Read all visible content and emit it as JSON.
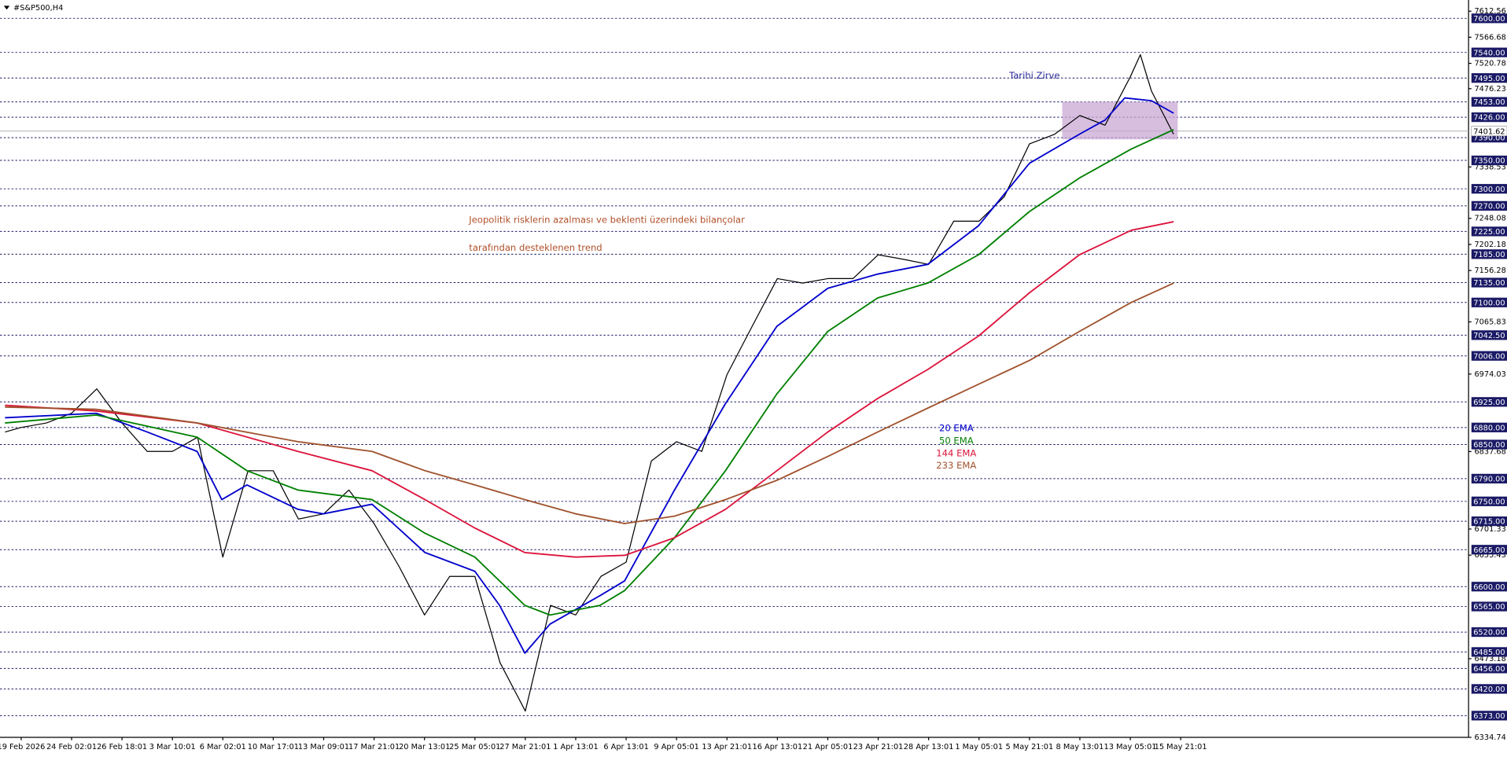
{
  "chart_data": {
    "type": "line",
    "title": "#S&P500,H4",
    "annotations": [
      "Tarihi Zirve",
      "Jeopolitik risklerin azalması ve beklenti üzerindeki bilançolar",
      "tarafından desteklenen trend"
    ],
    "xlim": [
      -0.42,
      28.71
    ],
    "xticks": [
      {
        "value": 0,
        "label": "19 Feb 2026"
      },
      {
        "value": 1,
        "label": "24 Feb 02:01"
      },
      {
        "value": 2,
        "label": "26 Feb 18:01"
      },
      {
        "value": 3,
        "label": "3 Mar 10:01"
      },
      {
        "value": 4,
        "label": "6 Mar 02:01"
      },
      {
        "value": 5,
        "label": "10 Mar 17:01"
      },
      {
        "value": 6,
        "label": "13 Mar 09:01"
      },
      {
        "value": 7,
        "label": "17 Mar 21:01"
      },
      {
        "value": 8,
        "label": "20 Mar 13:01"
      },
      {
        "value": 9,
        "label": "25 Mar 05:01"
      },
      {
        "value": 10,
        "label": "27 Mar 21:01"
      },
      {
        "value": 11,
        "label": "1 Apr 13:01"
      },
      {
        "value": 12,
        "label": "6 Apr 13:01"
      },
      {
        "value": 13,
        "label": "9 Apr 05:01"
      },
      {
        "value": 14,
        "label": "13 Apr 21:01"
      },
      {
        "value": 15,
        "label": "16 Apr 13:01"
      },
      {
        "value": 16,
        "label": "21 Apr 05:01"
      },
      {
        "value": 17,
        "label": "23 Apr 21:01"
      },
      {
        "value": 18,
        "label": "28 Apr 13:01"
      },
      {
        "value": 19,
        "label": "1 May 05:01"
      },
      {
        "value": 20,
        "label": "5 May 21:01"
      },
      {
        "value": 21,
        "label": "8 May 13:01"
      },
      {
        "value": 22,
        "label": "13 May 05:01"
      },
      {
        "value": 23,
        "label": "15 May 21:01"
      }
    ],
    "ylim": [
      6334.74,
      7612.56
    ],
    "yticks": [
      7612.56,
      7566.68,
      7520.78,
      7476.23,
      7338.53,
      7248.08,
      7202.18,
      7156.28,
      7065.83,
      6974.03,
      6837.68,
      6701.33,
      6655.43,
      6473.18,
      6334.74
    ],
    "levels": [
      {
        "value": 7600,
        "label": "7600.00"
      },
      {
        "value": 7540,
        "label": "7540.00"
      },
      {
        "value": 7495,
        "label": "7495.00"
      },
      {
        "value": 7453,
        "label": "7453.00"
      },
      {
        "value": 7426,
        "label": "7426.00"
      },
      {
        "value": 7390,
        "label": "7390.00"
      },
      {
        "value": 7350,
        "label": "7350.00"
      },
      {
        "value": 7300,
        "label": "7300.00"
      },
      {
        "value": 7270,
        "label": "7270.00"
      },
      {
        "value": 7225,
        "label": "7225.00"
      },
      {
        "value": 7185,
        "label": "7185.00"
      },
      {
        "value": 7135,
        "label": "7135.00"
      },
      {
        "value": 7100,
        "label": "7100.00"
      },
      {
        "value": 7042.5,
        "label": "7042.50"
      },
      {
        "value": 7006,
        "label": "7006.00"
      },
      {
        "value": 6925,
        "label": "6925.00"
      },
      {
        "value": 6880,
        "label": "6880.00"
      },
      {
        "value": 6850,
        "label": "6850.00"
      },
      {
        "value": 6790,
        "label": "6790.00"
      },
      {
        "value": 6750,
        "label": "6750.00"
      },
      {
        "value": 6715,
        "label": "6715.00"
      },
      {
        "value": 6665,
        "label": "6665.00"
      },
      {
        "value": 6600,
        "label": "6600.00"
      },
      {
        "value": 6565,
        "label": "6565.00"
      },
      {
        "value": 6520,
        "label": "6520.00"
      },
      {
        "value": 6485,
        "label": "6485.00"
      },
      {
        "value": 6456,
        "label": "6456.00"
      },
      {
        "value": 6420,
        "label": "6420.00"
      },
      {
        "value": 6373,
        "label": "6373.00"
      }
    ],
    "level_color": "#1a1a66",
    "current_price": 7401.62,
    "zone": {
      "x": [
        20.65,
        22.94
      ],
      "y": [
        7387,
        7453
      ],
      "color": "#c9a8d4"
    },
    "series": [
      {
        "color": "#000000",
        "x": [
          -0.32,
          0,
          0.5,
          1,
          1.5,
          2,
          2.5,
          3,
          3.5,
          4,
          4.5,
          5,
          5.5,
          6,
          6.5,
          7,
          7.5,
          8,
          8.5,
          9,
          9.5,
          10,
          10.5,
          11,
          11.5,
          12,
          12.5,
          13,
          13.5,
          14,
          14.5,
          15,
          15.5,
          16,
          16.5,
          17,
          17.5,
          18,
          18.5,
          19,
          19.5,
          20,
          20.5,
          21,
          21.5,
          22,
          22.2,
          22.42,
          22.86
        ],
        "values": [
          6872,
          6880,
          6888,
          6905,
          6948,
          6888,
          6838,
          6838,
          6863,
          6652,
          6804,
          6804,
          6719,
          6728,
          6770,
          6711,
          6635,
          6550,
          6618,
          6618,
          6466,
          6381,
          6567,
          6550,
          6618,
          6643,
          6821,
          6855,
          6838,
          6973,
          7058,
          7142,
          7134,
          7142,
          7142,
          7184,
          7176,
          7167,
          7243,
          7243,
          7286,
          7379,
          7396,
          7429,
          7412,
          7497,
          7536,
          7472,
          7396
        ]
      },
      {
        "name": "20 EMA",
        "color": "#0000cc",
        "x": [
          -0.32,
          1.49,
          2.5,
          3.49,
          3.98,
          4.48,
          5.49,
          5.99,
          6.96,
          8.01,
          9,
          9.49,
          9.99,
          10.49,
          11.48,
          11.97,
          12.96,
          13.97,
          14.99,
          16,
          16.99,
          17.98,
          18.99,
          20,
          20.99,
          21.5,
          21.89,
          22.42,
          22.86
        ],
        "values": [
          6897,
          6905,
          6872,
          6838,
          6753,
          6779,
          6736,
          6728,
          6745,
          6660,
          6627,
          6567,
          6483,
          6534,
          6584,
          6610,
          6770,
          6922,
          7058,
          7125,
          7150,
          7167,
          7235,
          7345,
          7396,
          7421,
          7460,
          7455,
          7433
        ]
      },
      {
        "name": "50 EMA",
        "color": "#008000",
        "x": [
          -0.32,
          1.49,
          3.49,
          4.48,
          5.49,
          6.96,
          8.01,
          9,
          9.99,
          10.49,
          11.48,
          11.97,
          12.96,
          13.97,
          14.99,
          16,
          16.99,
          17.98,
          18.99,
          20,
          20.99,
          22.02,
          22.86
        ],
        "values": [
          6888,
          6902,
          6863,
          6804,
          6770,
          6753,
          6694,
          6652,
          6567,
          6550,
          6567,
          6593,
          6686,
          6804,
          6939,
          7049,
          7108,
          7134,
          7184,
          7260,
          7319,
          7370,
          7404
        ]
      },
      {
        "name": "144 EMA",
        "color": "#dc143c",
        "x": [
          -0.32,
          1.49,
          3.49,
          5.49,
          6.96,
          8.01,
          9,
          9.99,
          11,
          11.97,
          12.96,
          13.97,
          14.99,
          16,
          16.99,
          17.98,
          18.99,
          20,
          20.99,
          22.02,
          22.86
        ],
        "values": [
          6919,
          6909,
          6888,
          6838,
          6804,
          6753,
          6703,
          6660,
          6652,
          6655,
          6686,
          6736,
          6804,
          6872,
          6931,
          6982,
          7041,
          7117,
          7184,
          7227,
          7242
        ]
      },
      {
        "name": "233 EMA",
        "color": "#a0522d",
        "x": [
          -0.32,
          1.49,
          3.49,
          5.49,
          6.96,
          8.01,
          9,
          9.99,
          11,
          11.97,
          12.96,
          13.97,
          14.99,
          16,
          16.99,
          17.98,
          18.99,
          20,
          20.99,
          22.02,
          22.86
        ],
        "values": [
          6916,
          6912,
          6888,
          6855,
          6838,
          6804,
          6779,
          6753,
          6728,
          6711,
          6724,
          6753,
          6787,
          6829,
          6872,
          6914,
          6956,
          6998,
          7049,
          7100,
          7134
        ]
      }
    ]
  }
}
